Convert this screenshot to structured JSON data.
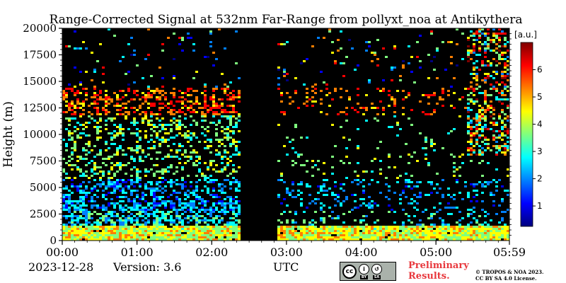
{
  "chart_data": {
    "type": "heatmap",
    "title": "Range-Corrected Signal at 532nm Far-Range from pollyxt_noa at Antikythera",
    "ylabel": "Height (m)",
    "xlabel": "UTC",
    "x_ticks": [
      "00:00",
      "01:00",
      "02:00",
      "03:00",
      "04:00",
      "05:00",
      "05:59"
    ],
    "x_tick_hours": [
      0,
      1,
      2,
      3,
      4,
      5,
      5.983
    ],
    "x_range_hours": [
      0,
      5.983
    ],
    "y_ticks": [
      0,
      2500,
      5000,
      7500,
      10000,
      12500,
      15000,
      17500,
      20000
    ],
    "y_tick_labels": [
      "0",
      "2500",
      "5000",
      "7500",
      "10000",
      "12500",
      "15000",
      "17500",
      "20000"
    ],
    "ylim": [
      0,
      20000
    ],
    "colorbar": {
      "label": "[a.u.]",
      "ticks": [
        1,
        2,
        3,
        4,
        5,
        6
      ],
      "tick_labels": [
        "1",
        "2",
        "3",
        "4",
        "5",
        "6"
      ],
      "range": [
        0.25,
        7
      ],
      "colormap": "jet"
    },
    "no_data_intervals_hours": [
      [
        2.35,
        2.85
      ]
    ],
    "high_cloud_layer_m": [
      12000,
      14500
    ],
    "boundary_layer_top_m": 1500
  },
  "footer": {
    "date": "2023-12-28",
    "version": "Version: 3.6",
    "utc": "UTC",
    "preliminary_line1": "Preliminary",
    "preliminary_line2": "Results.",
    "copyright_line1": "© TROPOS & NOA 2023.",
    "copyright_line2": "CC BY SA 4.0 License.",
    "license_badge": {
      "logo_text": "cc",
      "by_symbol": "i",
      "sa_symbol": "↺",
      "by_label": "BY",
      "sa_label": "SA"
    }
  },
  "colors": {
    "background": "#000000",
    "colormap_stops": [
      "#00007f",
      "#0000ff",
      "#007fff",
      "#00ffff",
      "#7fff7f",
      "#ffff00",
      "#ff7f00",
      "#ff0000",
      "#7f0000"
    ],
    "preliminary_text": "#e8383d"
  }
}
